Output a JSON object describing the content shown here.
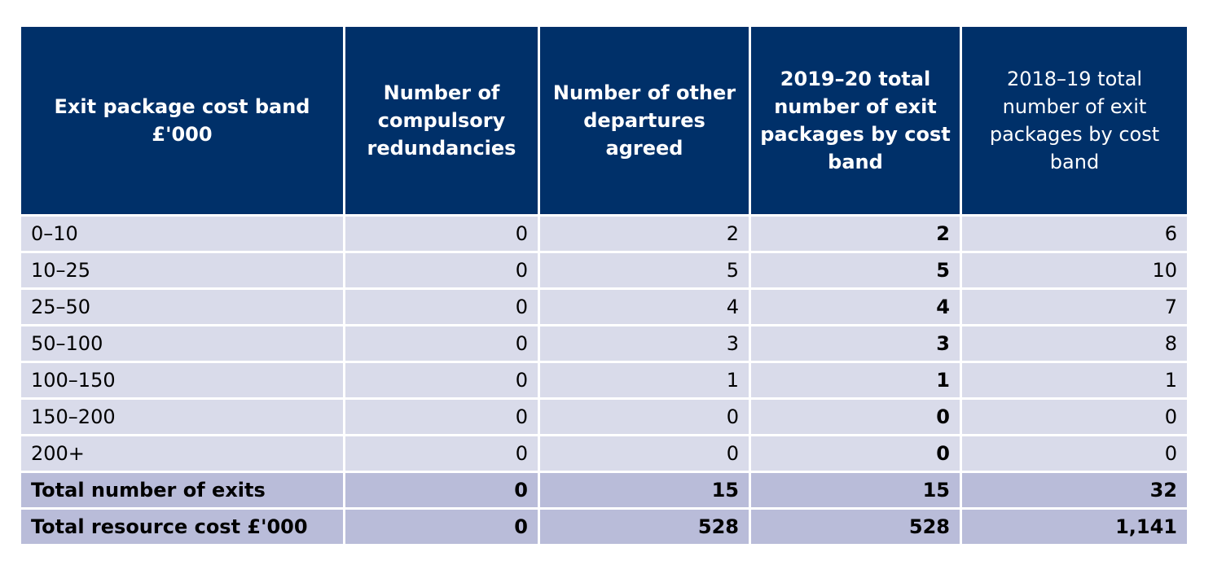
{
  "table": {
    "headers": [
      "Exit package cost band £'000",
      "Number of compulsory redundancies",
      "Number of other departures agreed",
      "2019–20 total number of exit packages by cost band",
      "2018–19 total number of exit packages by cost band"
    ],
    "rows": [
      [
        "0–10",
        "0",
        "2",
        "2",
        "6"
      ],
      [
        "10–25",
        "0",
        "5",
        "5",
        "10"
      ],
      [
        "25–50",
        "0",
        "4",
        "4",
        "7"
      ],
      [
        "50–100",
        "0",
        "3",
        "3",
        "8"
      ],
      [
        "100–150",
        "0",
        "1",
        "1",
        "1"
      ],
      [
        "150–200",
        "0",
        "0",
        "0",
        "0"
      ],
      [
        "200+",
        "0",
        "0",
        "0",
        "0"
      ]
    ],
    "totals": [
      [
        "Total number of exits",
        "0",
        "15",
        "15",
        "32"
      ],
      [
        "Total resource cost £'000",
        "0",
        "528",
        "528",
        "1,141"
      ]
    ]
  },
  "colors": {
    "header_bg": "#003069",
    "row_bg": "#d9dbea",
    "total_bg": "#b9bcd9"
  }
}
